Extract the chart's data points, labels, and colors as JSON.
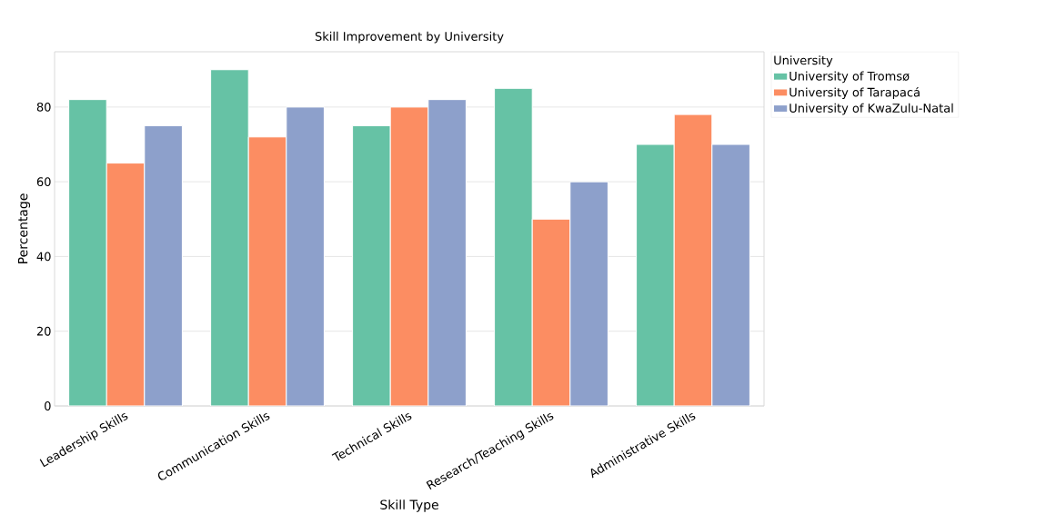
{
  "chart_data": {
    "type": "bar",
    "title": "Skill Improvement by University",
    "xlabel": "Skill Type",
    "ylabel": "Percentage",
    "legend_title": "University",
    "categories": [
      "Leadership Skills",
      "Communication Skills",
      "Technical Skills",
      "Research/Teaching Skills",
      "Administrative Skills"
    ],
    "series": [
      {
        "name": "University of Tromsø",
        "color": "#66c2a5",
        "values": [
          82,
          90,
          75,
          85,
          70
        ]
      },
      {
        "name": "University of Tarapacá",
        "color": "#fc8d62",
        "values": [
          65,
          72,
          80,
          50,
          78
        ]
      },
      {
        "name": "University of KwaZulu-Natal",
        "color": "#8da0cb",
        "values": [
          75,
          80,
          82,
          60,
          70
        ]
      }
    ],
    "ylim": [
      0,
      94.8
    ],
    "yticks": [
      0,
      20,
      40,
      60,
      80
    ],
    "grid": "y",
    "legend": "top right"
  }
}
